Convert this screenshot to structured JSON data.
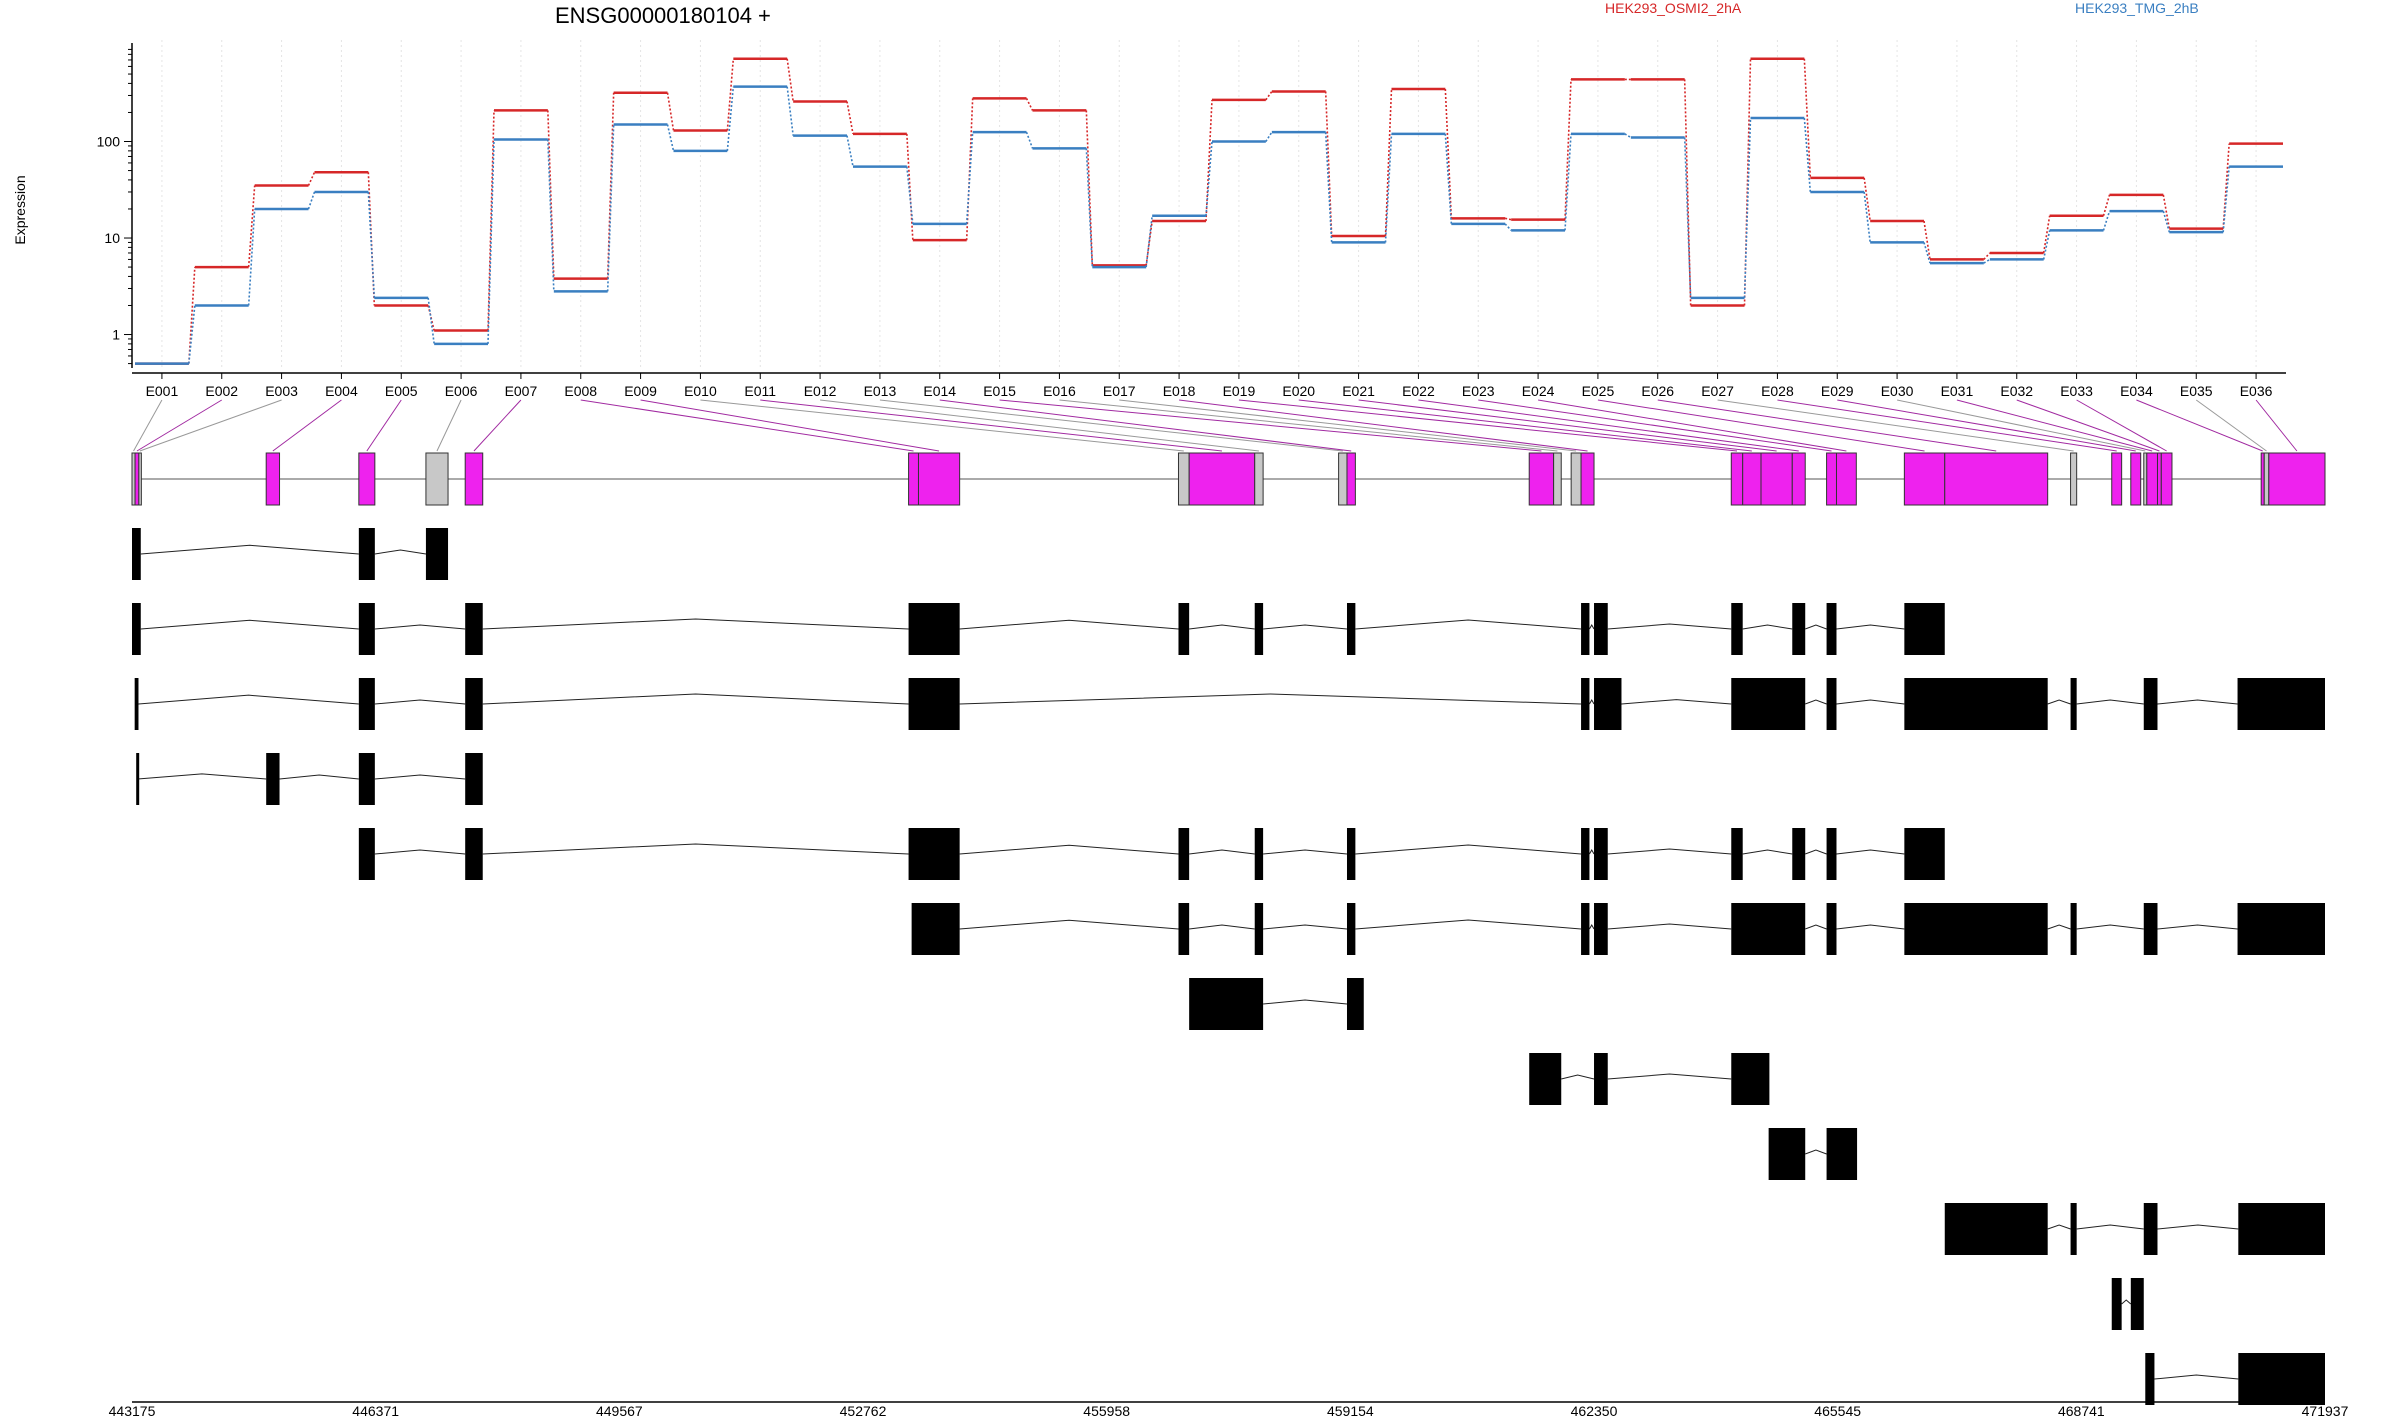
{
  "chart_data": {
    "type": "line",
    "title": "ENSG00000180104 +",
    "ylabel": "Expression",
    "xlabel": "",
    "y_scale": "log",
    "y_ticks": [
      1,
      10,
      100
    ],
    "ylim": [
      0.45,
      1000
    ],
    "grid": "vertical dotted lines at each exon",
    "legend_placement": "top-right",
    "colors": {
      "series_a": "#d62728",
      "series_b": "#3a7fc1",
      "exon": "#ee22ee",
      "exon_gray": "#c8c8c8",
      "transcript": "#000000"
    },
    "categories": [
      "E001",
      "E002",
      "E003",
      "E004",
      "E005",
      "E006",
      "E007",
      "E008",
      "E009",
      "E010",
      "E011",
      "E012",
      "E013",
      "E014",
      "E015",
      "E016",
      "E017",
      "E018",
      "E019",
      "E020",
      "E021",
      "E022",
      "E023",
      "E024",
      "E025",
      "E026",
      "E027",
      "E028",
      "E029",
      "E030",
      "E031",
      "E032",
      "E033",
      "E034",
      "E035",
      "E036"
    ],
    "series": [
      {
        "name": "HEK293_OSMI2_2hA",
        "values": [
          0.5,
          5.0,
          35,
          48,
          2.0,
          1.1,
          210,
          3.8,
          320,
          130,
          720,
          260,
          120,
          9.5,
          280,
          210,
          5.2,
          15,
          270,
          330,
          10.5,
          350,
          16,
          15.5,
          440,
          440,
          2.0,
          720,
          42,
          15,
          6.0,
          7.0,
          17,
          28,
          12.5,
          95
        ]
      },
      {
        "name": "HEK293_TMG_2hB",
        "values": [
          0.5,
          2.0,
          20,
          30,
          2.4,
          0.8,
          105,
          2.8,
          150,
          80,
          370,
          115,
          55,
          14,
          125,
          85,
          5.0,
          17,
          100,
          125,
          9.0,
          120,
          14,
          12,
          120,
          110,
          2.4,
          175,
          30,
          9.0,
          5.5,
          6.0,
          12,
          19,
          11.5,
          55
        ]
      }
    ],
    "genome_axis": {
      "tick_labels": [
        "443175",
        "446371",
        "449567",
        "452762",
        "455958",
        "459154",
        "462350",
        "465545",
        "468741",
        "471937"
      ],
      "range": [
        443175,
        471937
      ]
    },
    "exon_bins": [
      {
        "id": "E001",
        "start": 443175,
        "end": 443215,
        "expressed": false
      },
      {
        "id": "E002",
        "start": 443215,
        "end": 443265,
        "expressed": true
      },
      {
        "id": "E003",
        "start": 443265,
        "end": 443290,
        "expressed": false
      },
      {
        "id": "E004",
        "start": 444935,
        "end": 445110,
        "expressed": true
      },
      {
        "id": "E005",
        "start": 446150,
        "end": 446360,
        "expressed": true
      },
      {
        "id": "E006",
        "start": 447030,
        "end": 447320,
        "expressed": false
      },
      {
        "id": "E007",
        "start": 447545,
        "end": 447775,
        "expressed": true
      },
      {
        "id": "E008",
        "start": 453360,
        "end": 453490,
        "expressed": true
      },
      {
        "id": "E009",
        "start": 453490,
        "end": 454030,
        "expressed": true
      },
      {
        "id": "E010",
        "start": 456900,
        "end": 457040,
        "expressed": false
      },
      {
        "id": "E011",
        "start": 457040,
        "end": 457900,
        "expressed": true
      },
      {
        "id": "E012",
        "start": 457900,
        "end": 458010,
        "expressed": false
      },
      {
        "id": "E013",
        "start": 459000,
        "end": 459110,
        "expressed": false
      },
      {
        "id": "E014",
        "start": 459110,
        "end": 459220,
        "expressed": true
      },
      {
        "id": "E015",
        "start": 461500,
        "end": 461820,
        "expressed": true
      },
      {
        "id": "E016",
        "start": 461820,
        "end": 461920,
        "expressed": false
      },
      {
        "id": "E017",
        "start": 462050,
        "end": 462180,
        "expressed": false
      },
      {
        "id": "E018",
        "start": 462180,
        "end": 462350,
        "expressed": true
      },
      {
        "id": "E019",
        "start": 464150,
        "end": 464300,
        "expressed": true
      },
      {
        "id": "E020",
        "start": 464300,
        "end": 464540,
        "expressed": true
      },
      {
        "id": "E021",
        "start": 464540,
        "end": 464950,
        "expressed": true
      },
      {
        "id": "E022",
        "start": 464950,
        "end": 465120,
        "expressed": true
      },
      {
        "id": "E023",
        "start": 465400,
        "end": 465530,
        "expressed": true
      },
      {
        "id": "E024",
        "start": 465530,
        "end": 465790,
        "expressed": true
      },
      {
        "id": "E025",
        "start": 466420,
        "end": 466950,
        "expressed": true
      },
      {
        "id": "E026",
        "start": 466950,
        "end": 468300,
        "expressed": true
      },
      {
        "id": "E027",
        "start": 468600,
        "end": 468680,
        "expressed": false
      },
      {
        "id": "E028",
        "start": 469140,
        "end": 469270,
        "expressed": true
      },
      {
        "id": "E029",
        "start": 469390,
        "end": 469520,
        "expressed": true
      },
      {
        "id": "E030",
        "start": 469560,
        "end": 469600,
        "expressed": false
      },
      {
        "id": "E031",
        "start": 469600,
        "end": 469740,
        "expressed": true
      },
      {
        "id": "E032",
        "start": 469740,
        "end": 469790,
        "expressed": true
      },
      {
        "id": "E033",
        "start": 469790,
        "end": 469930,
        "expressed": true
      },
      {
        "id": "E034",
        "start": 471100,
        "end": 471140,
        "expressed": true
      },
      {
        "id": "E035",
        "start": 471140,
        "end": 471200,
        "expressed": false
      },
      {
        "id": "E036",
        "start": 471200,
        "end": 471937,
        "expressed": true
      }
    ],
    "transcripts": [
      [
        [
          443175,
          443290
        ],
        [
          446150,
          446360
        ],
        [
          447030,
          447320
        ]
      ],
      [
        [
          443175,
          443290
        ],
        [
          446150,
          446360
        ],
        [
          447545,
          447775
        ],
        [
          453360,
          454030
        ],
        [
          456900,
          457040
        ],
        [
          457900,
          458010
        ],
        [
          459110,
          459220
        ],
        [
          462180,
          462290
        ],
        [
          462350,
          462530
        ],
        [
          464150,
          464300
        ],
        [
          464950,
          465120
        ],
        [
          465400,
          465530
        ],
        [
          466420,
          466950
        ]
      ],
      [
        [
          443210,
          443260
        ],
        [
          446150,
          446360
        ],
        [
          447545,
          447775
        ],
        [
          453360,
          454030
        ],
        [
          462180,
          462290
        ],
        [
          462350,
          462710
        ],
        [
          464150,
          465120
        ],
        [
          465400,
          465530
        ],
        [
          466420,
          468300
        ],
        [
          468600,
          468680
        ],
        [
          469560,
          469740
        ],
        [
          470790,
          471937
        ]
      ],
      [
        [
          443230,
          443250
        ],
        [
          444935,
          445110
        ],
        [
          446150,
          446360
        ],
        [
          447545,
          447775
        ]
      ],
      [
        [
          446150,
          446360
        ],
        [
          447545,
          447775
        ],
        [
          453360,
          454030
        ],
        [
          456900,
          457040
        ],
        [
          457900,
          458010
        ],
        [
          459110,
          459220
        ],
        [
          462180,
          462290
        ],
        [
          462350,
          462530
        ],
        [
          464150,
          464300
        ],
        [
          464950,
          465120
        ],
        [
          465400,
          465530
        ],
        [
          466420,
          466950
        ]
      ],
      [
        [
          453400,
          454030
        ],
        [
          456900,
          457040
        ],
        [
          457900,
          458010
        ],
        [
          459110,
          459220
        ],
        [
          462180,
          462290
        ],
        [
          462350,
          462530
        ],
        [
          464150,
          465120
        ],
        [
          465400,
          465530
        ],
        [
          466420,
          468300
        ],
        [
          468600,
          468680
        ],
        [
          469560,
          469740
        ],
        [
          470790,
          471937
        ]
      ],
      [
        [
          457040,
          458010
        ],
        [
          459110,
          459330
        ]
      ],
      [
        [
          461500,
          461920
        ],
        [
          462350,
          462530
        ],
        [
          464150,
          464650
        ]
      ],
      [
        [
          464640,
          465120
        ],
        [
          465400,
          465800
        ]
      ],
      [
        [
          466950,
          468300
        ],
        [
          468600,
          468680
        ],
        [
          469560,
          469740
        ],
        [
          470800,
          471937
        ]
      ],
      [
        [
          469140,
          469270
        ],
        [
          469390,
          469560
        ]
      ],
      [
        [
          469580,
          469700
        ],
        [
          470800,
          471937
        ]
      ]
    ]
  }
}
